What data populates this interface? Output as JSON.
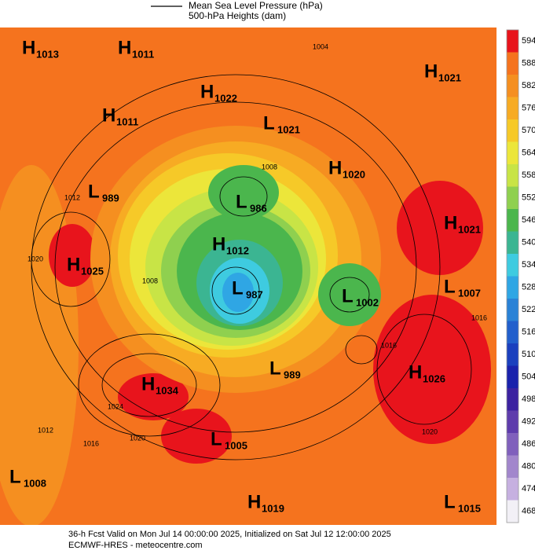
{
  "legend": {
    "lines": [
      "Mean Sea Level Pressure (hPa)",
      "500-hPa Heights (dam)"
    ]
  },
  "colorbar": {
    "levels": [
      594,
      588,
      582,
      576,
      570,
      564,
      558,
      552,
      546,
      540,
      534,
      528,
      522,
      516,
      510,
      504,
      498,
      492,
      486,
      480,
      474,
      468
    ],
    "colors": [
      "#e8141c",
      "#f5731e",
      "#f58f20",
      "#f7ab23",
      "#f6c928",
      "#ece63a",
      "#c8e446",
      "#8fd04f",
      "#4bb64d",
      "#3bb592",
      "#3ecbe0",
      "#2fa6e4",
      "#2a82d6",
      "#225fcc",
      "#1b40be",
      "#1a22ac",
      "#3c22a0",
      "#5e3cac",
      "#8060bc",
      "#a286cc",
      "#c6b0e0",
      "#f2f0f6"
    ]
  },
  "centers": [
    {
      "letter": "H",
      "value": "1013"
    },
    {
      "letter": "H",
      "value": "1011"
    },
    {
      "letter": "H",
      "value": "1022"
    },
    {
      "letter": "H",
      "value": "1011"
    },
    {
      "letter": "L",
      "value": "1021"
    },
    {
      "letter": "H",
      "value": "1021"
    },
    {
      "letter": "H",
      "value": "1020"
    },
    {
      "letter": "L",
      "value": "989"
    },
    {
      "letter": "L",
      "value": "986"
    },
    {
      "letter": "H",
      "value": "1021"
    },
    {
      "letter": "H",
      "value": "1012"
    },
    {
      "letter": "H",
      "value": "1025"
    },
    {
      "letter": "L",
      "value": "987"
    },
    {
      "letter": "L",
      "value": "1002"
    },
    {
      "letter": "L",
      "value": "1007"
    },
    {
      "letter": "L",
      "value": "989"
    },
    {
      "letter": "H",
      "value": "1026"
    },
    {
      "letter": "H",
      "value": "1034"
    },
    {
      "letter": "L",
      "value": "1005"
    },
    {
      "letter": "L",
      "value": "1008"
    },
    {
      "letter": "H",
      "value": "1019"
    },
    {
      "letter": "L",
      "value": "1015"
    }
  ],
  "contour_labels": [
    "1004",
    "1012",
    "1020",
    "1008",
    "1024",
    "1020",
    "1016",
    "1012",
    "1016",
    "1020",
    "1016",
    "1008"
  ],
  "footer": {
    "line1": "36-h Fcst Valid on Mon Jul 14 00:00:00 2025, Initialized on Sat Jul 12 12:00:00 2025",
    "line2": "ECMWF-HRES  - meteocentre.com"
  }
}
